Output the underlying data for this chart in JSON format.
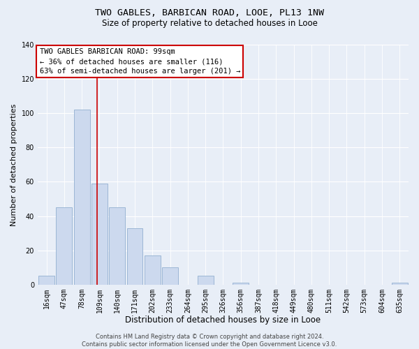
{
  "title": "TWO GABLES, BARBICAN ROAD, LOOE, PL13 1NW",
  "subtitle": "Size of property relative to detached houses in Looe",
  "xlabel": "Distribution of detached houses by size in Looe",
  "ylabel": "Number of detached properties",
  "bar_color": "#ccd9ee",
  "bar_edge_color": "#92afd0",
  "bin_labels": [
    "16sqm",
    "47sqm",
    "78sqm",
    "109sqm",
    "140sqm",
    "171sqm",
    "202sqm",
    "233sqm",
    "264sqm",
    "295sqm",
    "326sqm",
    "356sqm",
    "387sqm",
    "418sqm",
    "449sqm",
    "480sqm",
    "511sqm",
    "542sqm",
    "573sqm",
    "604sqm",
    "635sqm"
  ],
  "bar_heights": [
    5,
    45,
    102,
    59,
    45,
    33,
    17,
    10,
    0,
    5,
    0,
    1,
    0,
    0,
    0,
    0,
    0,
    0,
    0,
    0,
    1
  ],
  "vline_color": "#cc0000",
  "ylim": [
    0,
    140
  ],
  "yticks": [
    0,
    20,
    40,
    60,
    80,
    100,
    120,
    140
  ],
  "annotation_lines": [
    "TWO GABLES BARBICAN ROAD: 99sqm",
    "← 36% of detached houses are smaller (116)",
    "63% of semi-detached houses are larger (201) →"
  ],
  "footer_lines": [
    "Contains HM Land Registry data © Crown copyright and database right 2024.",
    "Contains public sector information licensed under the Open Government Licence v3.0."
  ],
  "grid_color": "#ffffff",
  "background_color": "#e8eef7",
  "title_fontsize": 9.5,
  "subtitle_fontsize": 8.5,
  "ylabel_fontsize": 8,
  "xlabel_fontsize": 8.5,
  "tick_fontsize": 7,
  "annotation_fontsize": 7.5,
  "footer_fontsize": 6
}
